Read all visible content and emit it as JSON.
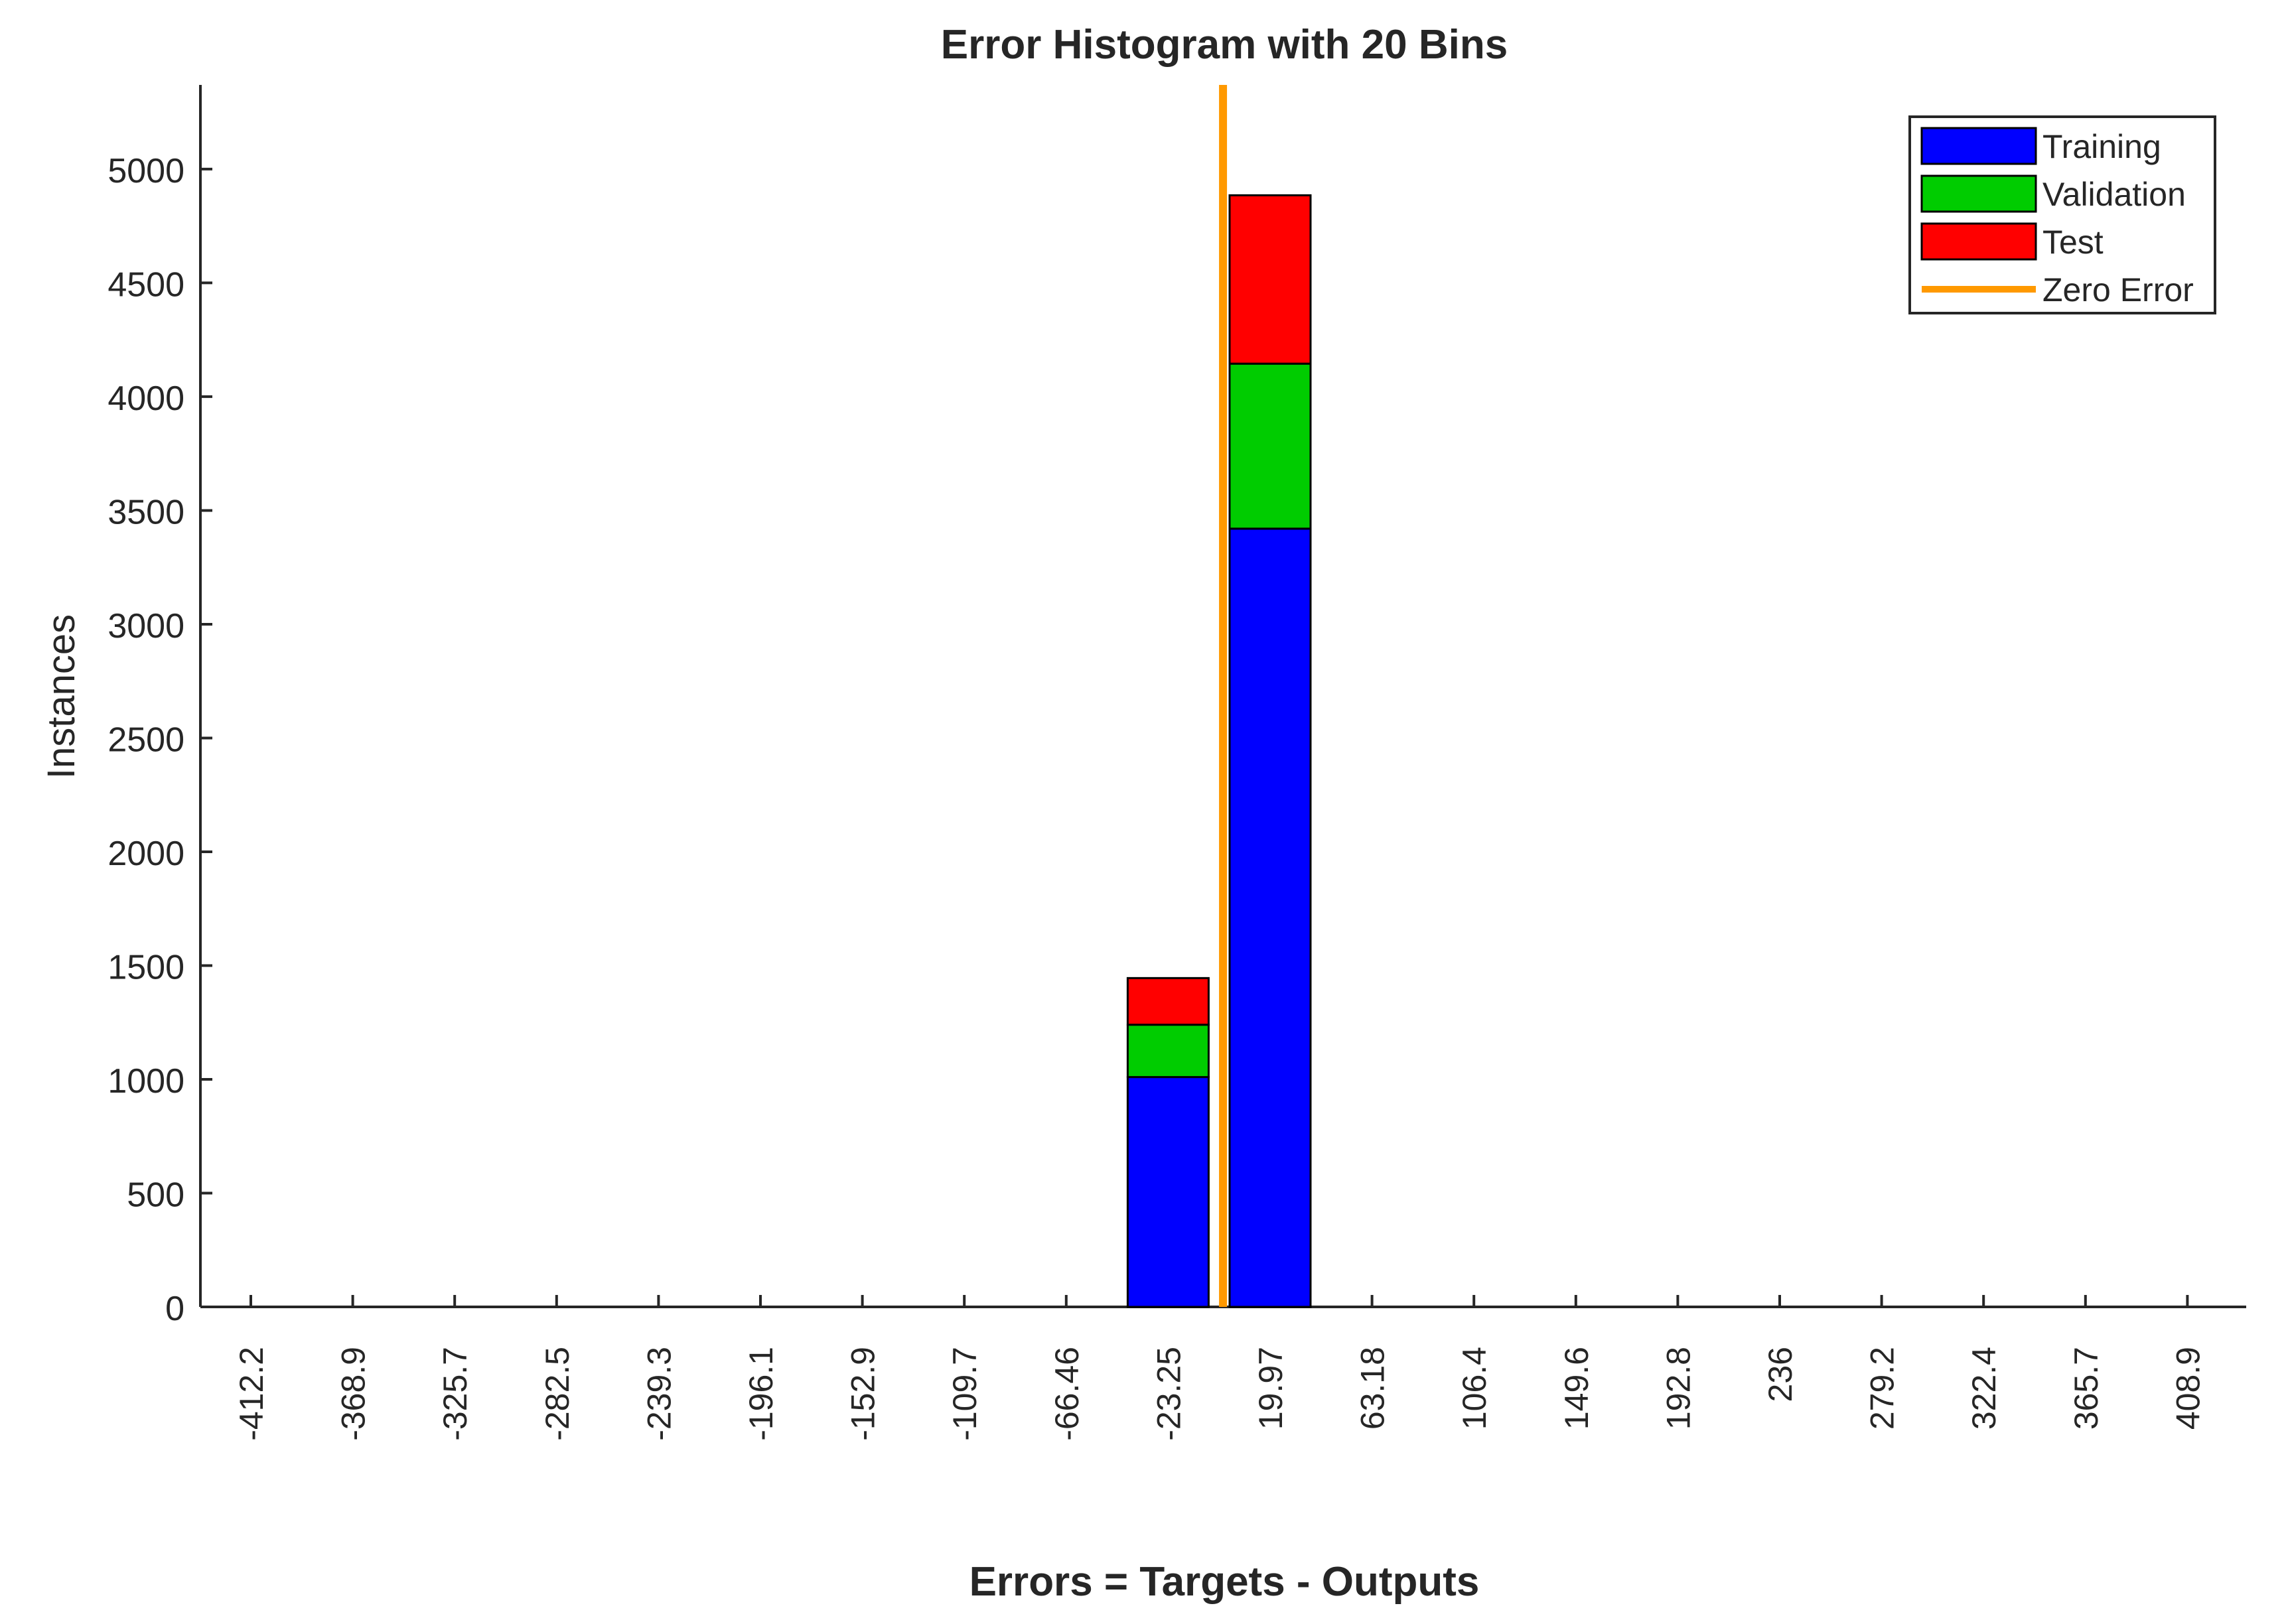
{
  "chart_data": {
    "type": "bar",
    "stacked": true,
    "title": "Error Histogram with 20 Bins",
    "xlabel": "Errors = Targets - Outputs",
    "ylabel": "Instances",
    "categories": [
      "-412.2",
      "-368.9",
      "-325.7",
      "-282.5",
      "-239.3",
      "-196.1",
      "-152.9",
      "-109.7",
      "-66.46",
      "-23.25",
      "19.97",
      "63.18",
      "106.4",
      "149.6",
      "192.8",
      "236",
      "279.2",
      "322.4",
      "365.7",
      "408.9"
    ],
    "series": [
      {
        "name": "Training",
        "color": "#0000ff",
        "values": [
          0,
          0,
          0,
          0,
          0,
          0,
          0,
          0,
          0,
          1010,
          3420,
          0,
          0,
          0,
          0,
          0,
          0,
          0,
          0,
          0
        ]
      },
      {
        "name": "Validation",
        "color": "#00cc00",
        "values": [
          0,
          0,
          0,
          0,
          0,
          0,
          0,
          0,
          0,
          230,
          725,
          0,
          0,
          0,
          0,
          0,
          0,
          0,
          0,
          0
        ]
      },
      {
        "name": "Test",
        "color": "#ff0000",
        "values": [
          0,
          0,
          0,
          0,
          0,
          0,
          0,
          0,
          0,
          205,
          740,
          0,
          0,
          0,
          0,
          0,
          0,
          0,
          0,
          0
        ]
      }
    ],
    "zero_error": {
      "name": "Zero Error",
      "color": "#ff9900",
      "x": 0
    },
    "yticks": [
      0,
      500,
      1000,
      1500,
      2000,
      2500,
      3000,
      3500,
      4000,
      4500,
      5000
    ],
    "ylim": [
      0,
      5370
    ],
    "xlim": [
      -433.81,
      443.43
    ],
    "grid": false,
    "legend_position": "top-right"
  }
}
